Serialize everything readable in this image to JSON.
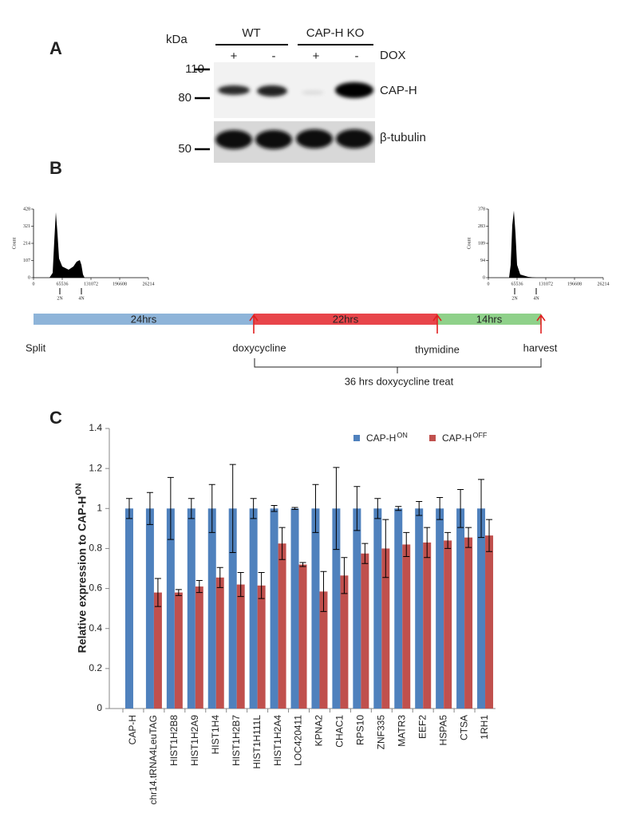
{
  "panel_a": {
    "label": "A",
    "unit": "kDa",
    "groups": [
      "WT",
      "CAP-H KO"
    ],
    "dox": [
      "+",
      "-",
      "+",
      "-"
    ],
    "dox_label": "DOX",
    "markers": [
      "110",
      "80",
      "50"
    ],
    "bands": [
      "CAP-H",
      "β-tubulin"
    ]
  },
  "panel_b": {
    "label": "B",
    "histograms": [
      {
        "y_label": "Count",
        "yticks": [
          "428",
          "321",
          "214",
          "107",
          "0"
        ],
        "xticks": [
          "0",
          "65536",
          "131072",
          "196608",
          "26214"
        ],
        "peaks": [
          "2N",
          "4N"
        ]
      },
      {
        "y_label": "Count",
        "yticks": [
          "378",
          "283",
          "189",
          "94",
          "0"
        ],
        "xticks": [
          "0",
          "65536",
          "131072",
          "196608",
          "26214"
        ],
        "peaks": [
          "2N",
          "4N"
        ]
      }
    ],
    "phases": [
      "24hrs",
      "22hrs",
      "14hrs"
    ],
    "events": [
      "Split",
      "doxycycline",
      "thymidine",
      "harvest"
    ],
    "treatment": "36 hrs doxycycline treat"
  },
  "panel_c_label": "C",
  "chart_data": {
    "type": "bar",
    "y_label": "Relative expression to CAP-H",
    "y_label_sup": "ON",
    "categories": [
      "CAP-H",
      "chr14.tRNA4LeuTAG",
      "HIST1H2B8",
      "HIST1H2A9",
      "HIST1H4",
      "HIST1H2B7",
      "HIST1H111L",
      "HIST1H2A4",
      "LOC420411",
      "KPNA2",
      "CHAC1",
      "RPS10",
      "ZNF335",
      "MATR3",
      "EEF2",
      "HSPA5",
      "CTSA",
      "1RH1"
    ],
    "series": [
      {
        "name": "CAP-H",
        "name_sup": "ON",
        "color": "#4f81bd",
        "values": [
          1,
          1,
          1,
          1,
          1,
          1,
          1,
          1,
          1,
          1,
          1,
          1,
          1,
          1,
          1,
          1,
          1,
          1
        ],
        "errors": [
          0.05,
          0.08,
          0.155,
          0.05,
          0.12,
          0.22,
          0.05,
          0.015,
          0.005,
          0.12,
          0.205,
          0.11,
          0.05,
          0.01,
          0.035,
          0.055,
          0.095,
          0.145
        ]
      },
      {
        "name": "CAP-H",
        "name_sup": "OFF",
        "color": "#c0504d",
        "values": [
          null,
          0.58,
          0.58,
          0.61,
          0.655,
          0.62,
          0.615,
          0.825,
          0.72,
          0.585,
          0.665,
          0.775,
          0.8,
          0.82,
          0.83,
          0.84,
          0.855,
          0.865
        ],
        "errors": [
          null,
          0.07,
          0.015,
          0.03,
          0.05,
          0.06,
          0.065,
          0.08,
          0.01,
          0.1,
          0.09,
          0.05,
          0.145,
          0.06,
          0.075,
          0.04,
          0.05,
          0.08
        ]
      }
    ],
    "ylim": [
      0,
      1.4
    ],
    "yticks": [
      0,
      0.2,
      0.4,
      0.6,
      0.8,
      1,
      1.2,
      1.4
    ],
    "grid": false
  }
}
